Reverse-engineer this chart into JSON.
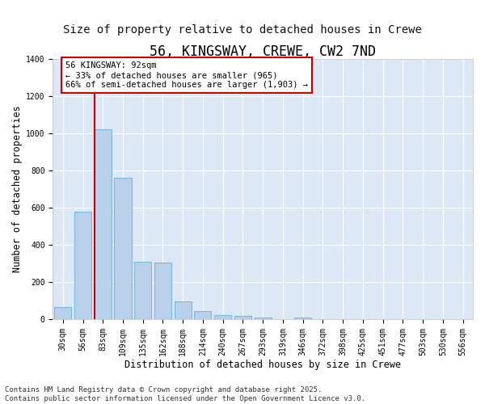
{
  "title": "56, KINGSWAY, CREWE, CW2 7ND",
  "subtitle": "Size of property relative to detached houses in Crewe",
  "xlabel": "Distribution of detached houses by size in Crewe",
  "ylabel": "Number of detached properties",
  "categories": [
    "30sqm",
    "56sqm",
    "83sqm",
    "109sqm",
    "135sqm",
    "162sqm",
    "188sqm",
    "214sqm",
    "240sqm",
    "267sqm",
    "293sqm",
    "319sqm",
    "346sqm",
    "372sqm",
    "398sqm",
    "425sqm",
    "451sqm",
    "477sqm",
    "503sqm",
    "530sqm",
    "556sqm"
  ],
  "values": [
    65,
    580,
    1020,
    760,
    310,
    305,
    95,
    45,
    22,
    18,
    10,
    0,
    12,
    0,
    0,
    0,
    0,
    0,
    0,
    0,
    0
  ],
  "bar_color": "#b8d0ea",
  "bar_edge_color": "#6aaed6",
  "background_color": "#dce8f5",
  "grid_color": "#ffffff",
  "vline_color": "#cc0000",
  "annotation_text": "56 KINGSWAY: 92sqm\n← 33% of detached houses are smaller (965)\n66% of semi-detached houses are larger (1,903) →",
  "annotation_box_color": "#cc0000",
  "ylim": [
    0,
    1400
  ],
  "yticks": [
    0,
    200,
    400,
    600,
    800,
    1000,
    1200,
    1400
  ],
  "footer_text": "Contains HM Land Registry data © Crown copyright and database right 2025.\nContains public sector information licensed under the Open Government Licence v3.0.",
  "title_fontsize": 12,
  "subtitle_fontsize": 10,
  "label_fontsize": 8.5,
  "tick_fontsize": 7,
  "footer_fontsize": 6.5,
  "annot_fontsize": 7.5
}
